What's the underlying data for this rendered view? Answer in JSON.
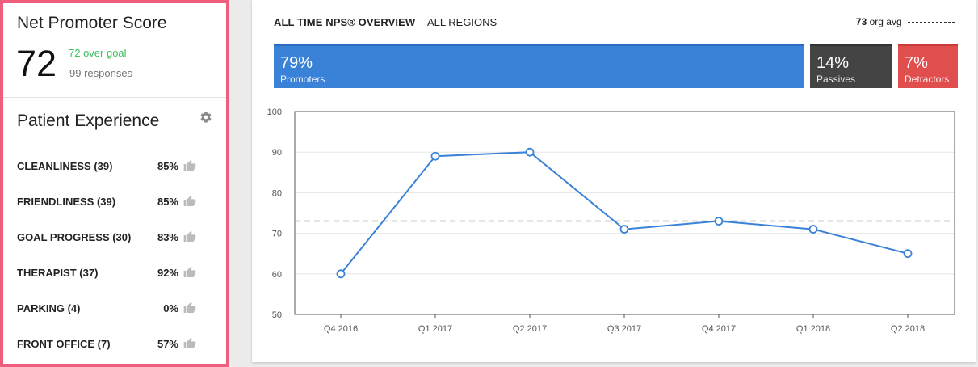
{
  "nps": {
    "title": "Net Promoter Score",
    "score": "72",
    "over_goal": "72 over goal",
    "responses": "99 responses",
    "colors": {
      "over_goal": "#3bbf5f",
      "panel_border": "#ef5f7d"
    }
  },
  "patient_experience": {
    "title": "Patient Experience",
    "settings_icon": "gear-icon",
    "metrics": [
      {
        "label": "CLEANLINESS (39)",
        "percent": "85%",
        "icon": "thumbs-up-icon"
      },
      {
        "label": "FRIENDLINESS (39)",
        "percent": "85%",
        "icon": "thumbs-up-icon"
      },
      {
        "label": "GOAL PROGRESS (30)",
        "percent": "83%",
        "icon": "thumbs-up-icon"
      },
      {
        "label": "THERAPIST (37)",
        "percent": "92%",
        "icon": "thumbs-up-icon"
      },
      {
        "label": "PARKING (4)",
        "percent": "0%",
        "icon": "thumbs-up-icon"
      },
      {
        "label": "FRONT OFFICE (7)",
        "percent": "57%",
        "icon": "thumbs-up-icon"
      }
    ]
  },
  "overview": {
    "title": "ALL TIME NPS® OVERVIEW",
    "region": "ALL REGIONS",
    "org_avg_value": "73",
    "org_avg_label": "org avg",
    "segments": [
      {
        "percent": "79%",
        "label": "Promoters",
        "color": "#3a82d8",
        "value": 79
      },
      {
        "percent": "14%",
        "label": "Passives",
        "color": "#444444",
        "value": 14
      },
      {
        "percent": "7%",
        "label": "Detractors",
        "color": "#e04e4e",
        "value": 7
      }
    ]
  },
  "chart_data": {
    "type": "line",
    "categories": [
      "Q4 2016",
      "Q1 2017",
      "Q2 2017",
      "Q3 2017",
      "Q4 2017",
      "Q1 2018",
      "Q2 2018"
    ],
    "series": [
      {
        "values": [
          60,
          89,
          90,
          71,
          73,
          71,
          65
        ],
        "color": "#3a82d8"
      }
    ],
    "reference_line": {
      "value": 73,
      "style": "dashed",
      "color": "#999999"
    },
    "yticks": [
      "100",
      "90",
      "80",
      "70",
      "60",
      "50"
    ],
    "ylim": [
      50,
      100
    ],
    "grid": true,
    "title": "",
    "xlabel": "",
    "ylabel": ""
  }
}
